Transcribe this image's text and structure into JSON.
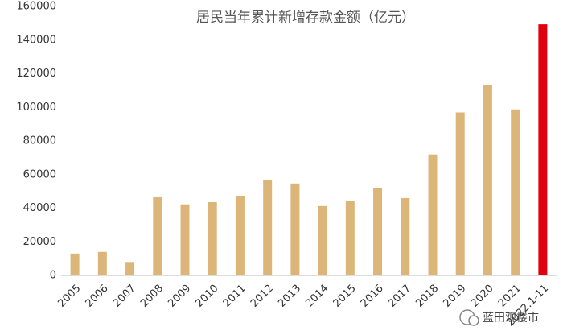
{
  "chart_data": {
    "type": "bar",
    "title": "居民当年累计新增存款金额（亿元）",
    "categories": [
      "2005",
      "2006",
      "2007",
      "2008",
      "2009",
      "2010",
      "2011",
      "2012",
      "2013",
      "2014",
      "2015",
      "2016",
      "2017",
      "2018",
      "2019",
      "2020",
      "2021",
      "2022.1-11"
    ],
    "values": [
      13000,
      14000,
      8000,
      46500,
      42300,
      43600,
      47000,
      57000,
      54700,
      41300,
      44200,
      51800,
      46000,
      72000,
      97000,
      113200,
      98800,
      149400
    ],
    "colors": [
      "#dcb679",
      "#dcb679",
      "#dcb679",
      "#dcb679",
      "#dcb679",
      "#dcb679",
      "#dcb679",
      "#dcb679",
      "#dcb679",
      "#dcb679",
      "#dcb679",
      "#dcb679",
      "#dcb679",
      "#dcb679",
      "#dcb679",
      "#dcb679",
      "#dcb679",
      "#e0000f"
    ],
    "ylim": [
      0,
      160000
    ],
    "yticks": [
      0,
      20000,
      40000,
      60000,
      80000,
      100000,
      120000,
      140000,
      160000
    ],
    "grid": false
  },
  "watermark": "蓝田观楼市"
}
